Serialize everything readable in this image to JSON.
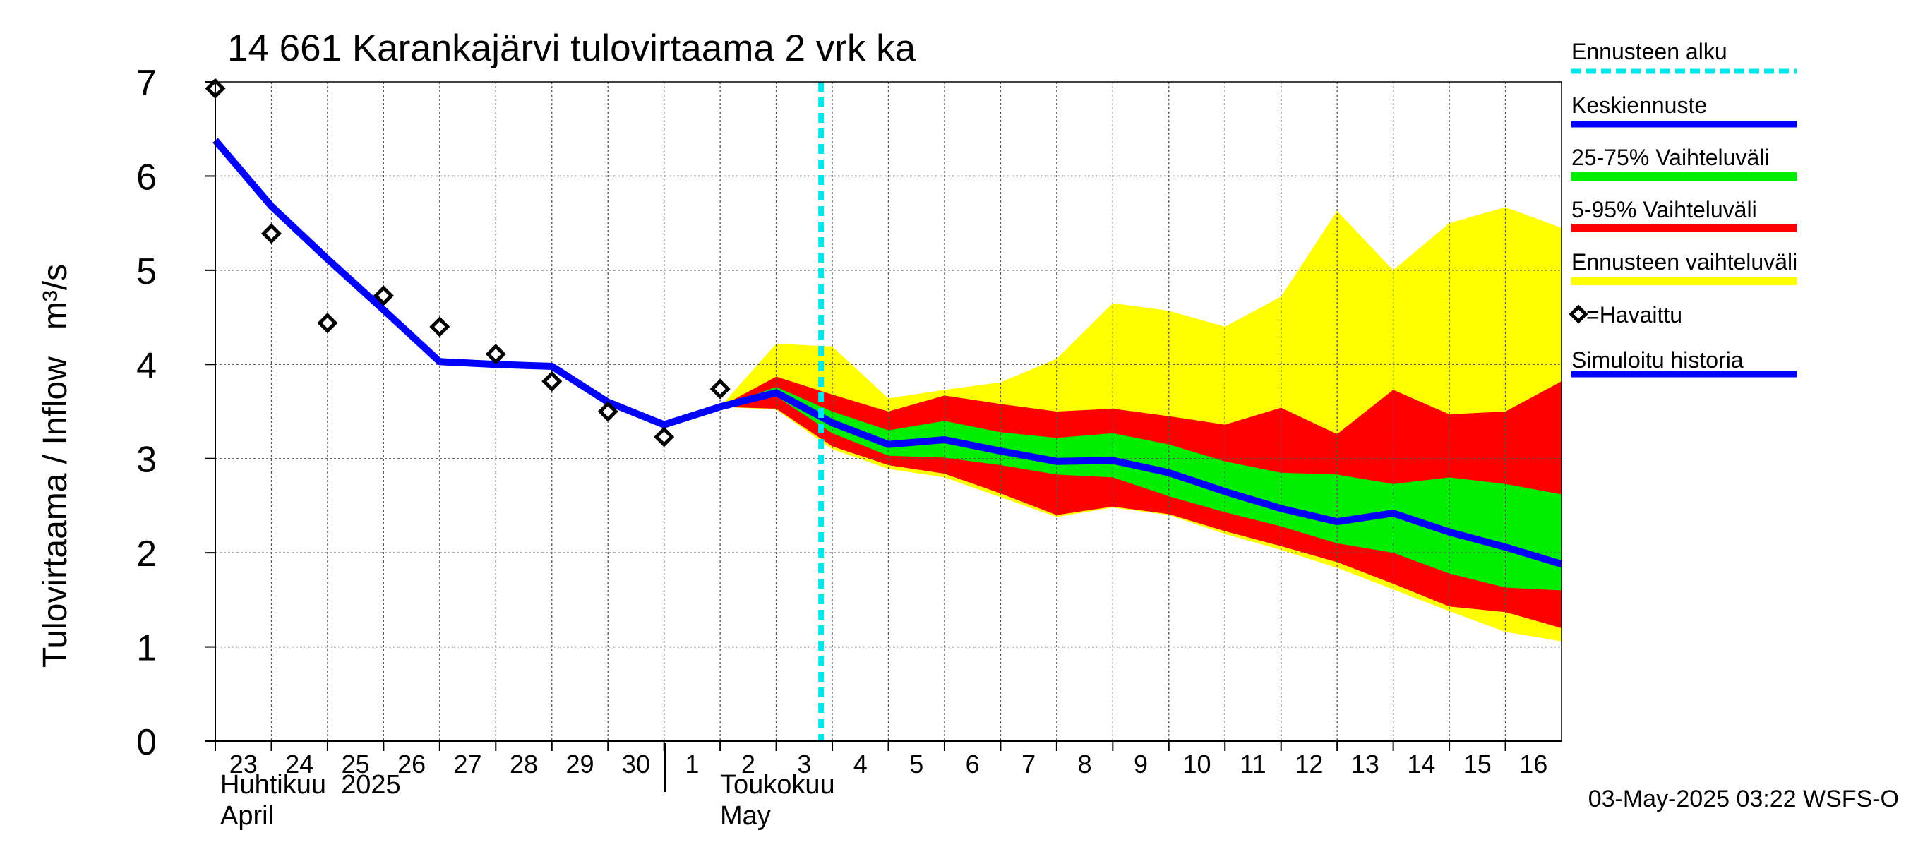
{
  "chart_data": {
    "type": "area",
    "title": "14 661 Karankajärvi tulovirtaama 2 vrk ka",
    "ylabel": "Tulovirtaama / Inflow",
    "yunit": "m³/s",
    "ylim": [
      0,
      7
    ],
    "yticks": [
      "0",
      "1",
      "2",
      "3",
      "4",
      "5",
      "6",
      "7"
    ],
    "xticks": [
      "23",
      "24",
      "25",
      "26",
      "27",
      "28",
      "29",
      "30",
      "1",
      "2",
      "3",
      "4",
      "5",
      "6",
      "7",
      "8",
      "9",
      "10",
      "11",
      "12",
      "13",
      "14",
      "15",
      "16"
    ],
    "x_month_labels": [
      {
        "line1": "Huhtikuu  2025",
        "line2": "April"
      },
      {
        "line1": "Toukokuu",
        "line2": "May"
      }
    ],
    "grid": true,
    "forecast_start_x": 10.8,
    "legend": {
      "placement": "right",
      "items": [
        {
          "label": "Ennusteen alku",
          "color": "#00e5ee",
          "style": "dashed"
        },
        {
          "label": "Keskiennuste",
          "color": "#0000ff",
          "style": "line"
        },
        {
          "label": "25-75% Vaihteluväli",
          "color": "#00ee00",
          "style": "band"
        },
        {
          "label": "5-95% Vaihteluväli",
          "color": "#ff0000",
          "style": "band"
        },
        {
          "label": "Ennusteen vaihteluväli",
          "color": "#ffff00",
          "style": "band"
        },
        {
          "label": "=Havaittu",
          "color": "#000000",
          "style": "marker"
        },
        {
          "label": "Simuloitu historia",
          "color": "#0000ff",
          "style": "line"
        }
      ]
    },
    "series": [
      {
        "name": "Simuloitu historia",
        "color": "#0000ff",
        "x": [
          0,
          1,
          2,
          3,
          4,
          5,
          6,
          7,
          8,
          9,
          10
        ],
        "values": [
          6.38,
          5.68,
          5.12,
          4.58,
          4.03,
          4.0,
          3.98,
          3.6,
          3.36,
          3.55,
          3.7
        ]
      },
      {
        "name": "=Havaittu",
        "color": "#000000",
        "x": [
          0,
          1,
          2,
          3,
          4,
          5,
          6,
          7,
          8,
          9
        ],
        "values": [
          6.93,
          5.39,
          4.44,
          4.73,
          4.4,
          4.11,
          3.82,
          3.5,
          3.23,
          3.74
        ]
      },
      {
        "name": "Keskiennuste",
        "color": "#0000ff",
        "x": [
          9,
          10,
          11,
          12,
          13,
          14,
          15,
          16,
          17,
          18,
          19,
          20,
          21,
          22,
          23,
          24
        ],
        "values": [
          3.55,
          3.7,
          3.38,
          3.15,
          3.2,
          3.08,
          2.97,
          2.98,
          2.85,
          2.65,
          2.47,
          2.33,
          2.42,
          2.22,
          2.06,
          1.88
        ]
      },
      {
        "name": "25-75% Vaihteluväli",
        "color": "#00ee00",
        "x": [
          9,
          10,
          11,
          12,
          13,
          14,
          15,
          16,
          17,
          18,
          19,
          20,
          21,
          22,
          23,
          24
        ],
        "upper": [
          3.55,
          3.76,
          3.5,
          3.3,
          3.4,
          3.28,
          3.22,
          3.27,
          3.15,
          2.97,
          2.85,
          2.83,
          2.73,
          2.8,
          2.73,
          2.62
        ],
        "lower": [
          3.55,
          3.66,
          3.27,
          3.03,
          3.01,
          2.93,
          2.83,
          2.8,
          2.6,
          2.43,
          2.28,
          2.1,
          2.0,
          1.78,
          1.63,
          1.6
        ]
      },
      {
        "name": "5-95% Vaihteluväli",
        "color": "#ff0000",
        "x": [
          9,
          10,
          11,
          12,
          13,
          14,
          15,
          16,
          17,
          18,
          19,
          20,
          21,
          22,
          23,
          24
        ],
        "upper": [
          3.55,
          3.87,
          3.68,
          3.5,
          3.67,
          3.58,
          3.5,
          3.53,
          3.45,
          3.36,
          3.54,
          3.26,
          3.73,
          3.47,
          3.5,
          3.82
        ],
        "lower": [
          3.55,
          3.53,
          3.13,
          2.93,
          2.84,
          2.63,
          2.4,
          2.49,
          2.41,
          2.23,
          2.07,
          1.9,
          1.67,
          1.43,
          1.37,
          1.2
        ]
      },
      {
        "name": "Ennusteen vaihteluväli",
        "color": "#ffff00",
        "x": [
          9,
          10,
          11,
          12,
          13,
          14,
          15,
          16,
          17,
          18,
          19,
          20,
          21,
          22,
          23,
          24
        ],
        "upper": [
          3.55,
          4.22,
          4.19,
          3.64,
          3.73,
          3.81,
          4.06,
          4.65,
          4.57,
          4.4,
          4.72,
          5.63,
          5.0,
          5.5,
          5.67,
          5.45
        ],
        "lower": [
          3.55,
          3.52,
          3.1,
          2.89,
          2.8,
          2.59,
          2.38,
          2.48,
          2.4,
          2.2,
          2.03,
          1.84,
          1.61,
          1.38,
          1.16,
          1.06
        ]
      }
    ]
  },
  "footer": {
    "timestamp": "03-May-2025 03:22 WSFS-O"
  }
}
